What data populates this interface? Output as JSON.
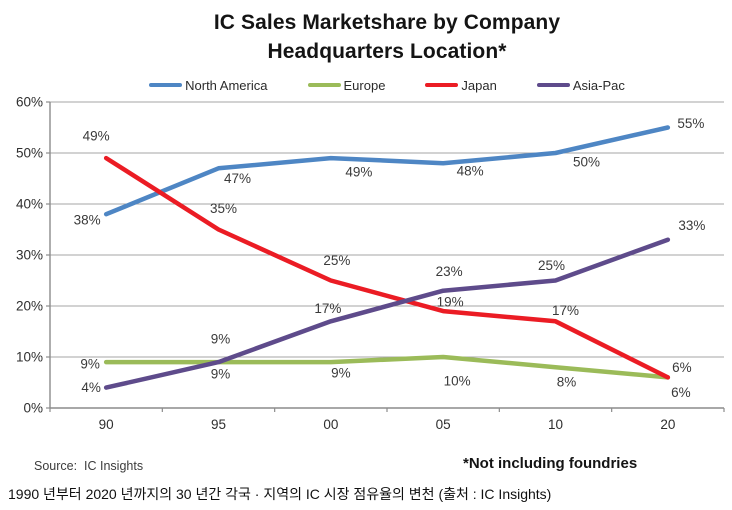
{
  "figure": {
    "title_line1": "IC Sales Marketshare by Company",
    "title_line2": "Headquarters Location*",
    "source": "Source:  IC Insights",
    "footnote": "*Not including foundries"
  },
  "caption": "1990 년부터 2020 년까지의 30 년간 각국 · 지역의 IC 시장 점유율의 변천 (출처 : IC Insights)",
  "chart_data": {
    "type": "line",
    "title": "IC Sales Marketshare by Company Headquarters Location*",
    "xlabel": "",
    "ylabel": "",
    "categories": [
      "90",
      "95",
      "00",
      "05",
      "10",
      "20"
    ],
    "ylim": [
      0,
      60
    ],
    "ytick_step": 10,
    "yticks": [
      "0%",
      "10%",
      "20%",
      "30%",
      "40%",
      "50%",
      "60%"
    ],
    "grid": true,
    "legend_position": "top",
    "label_format": "percent",
    "series": [
      {
        "name": "North America",
        "color": "#4E86C4",
        "values": [
          38,
          47,
          49,
          48,
          50,
          55
        ],
        "label_offsets": [
          [
            -19,
            6
          ],
          [
            19,
            10
          ],
          [
            28,
            14
          ],
          [
            27,
            8
          ],
          [
            31,
            9
          ],
          [
            23,
            -4
          ]
        ]
      },
      {
        "name": "Europe",
        "color": "#9BBB59",
        "values": [
          9,
          9,
          9,
          10,
          8,
          6
        ],
        "label_offsets": [
          [
            -16,
            2
          ],
          [
            2,
            12
          ],
          [
            10,
            11
          ],
          [
            14,
            24
          ],
          [
            11,
            15
          ],
          [
            13,
            15
          ]
        ]
      },
      {
        "name": "Japan",
        "color": "#EB1C24",
        "values": [
          49,
          35,
          25,
          19,
          17,
          6
        ],
        "label_offsets": [
          [
            -10,
            -22
          ],
          [
            5,
            -21
          ],
          [
            6,
            -20
          ],
          [
            7,
            -9
          ],
          [
            10,
            -11
          ],
          [
            14,
            -10
          ]
        ]
      },
      {
        "name": "Asia-Pac",
        "color": "#5E4B8B",
        "values": [
          4,
          9,
          17,
          23,
          25,
          33
        ],
        "label_offsets": [
          [
            -15,
            0
          ],
          [
            2,
            -23
          ],
          [
            -3,
            -13
          ],
          [
            6,
            -19
          ],
          [
            -4,
            -15
          ],
          [
            24,
            -14
          ]
        ]
      }
    ]
  }
}
